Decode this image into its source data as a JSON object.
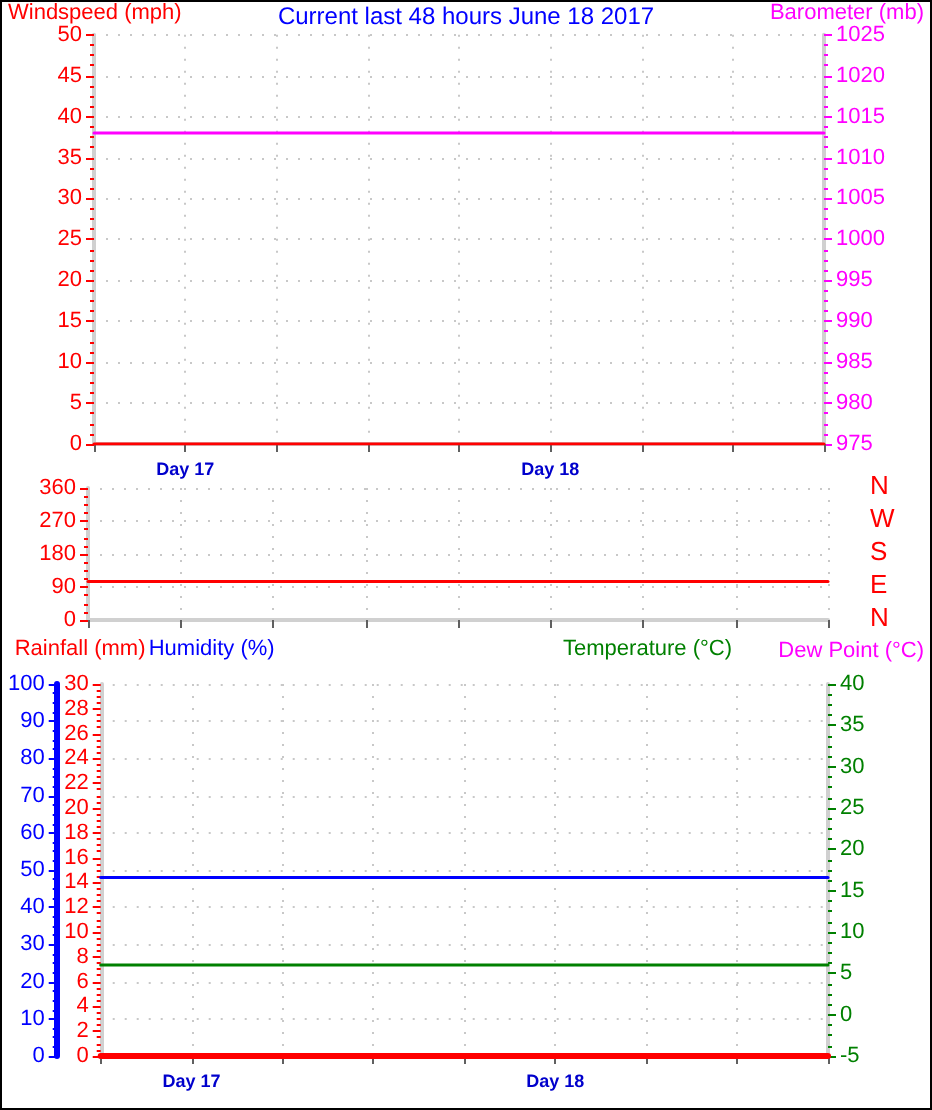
{
  "chart_data": [
    {
      "type": "line",
      "title": "Current last 48 hours June 18 2017",
      "ylabel": "Windspeed (mph)",
      "y2label": "Barometer (mb)",
      "marker": "none",
      "grid": true,
      "categories": [
        null,
        "Day 17",
        null,
        null,
        null,
        "Day 18",
        null,
        null,
        null
      ],
      "ylim": [
        0,
        50
      ],
      "yticks": [
        0,
        5,
        10,
        15,
        20,
        25,
        30,
        35,
        40,
        45,
        50
      ],
      "y2lim": [
        975,
        1025
      ],
      "y2ticks": [
        975,
        980,
        985,
        990,
        995,
        1000,
        1005,
        1010,
        1015,
        1020,
        1025
      ],
      "series": [
        {
          "color": "#ff00ff",
          "axis": "y2",
          "values": [
            1013,
            1013,
            1013,
            1013,
            1013,
            1013,
            1013,
            1013,
            1013
          ]
        },
        {
          "color": "#ff0000",
          "values": [
            0,
            0,
            0,
            0,
            0,
            0,
            0,
            0,
            0
          ]
        }
      ]
    },
    {
      "type": "line",
      "marker": "none",
      "grid": true,
      "tick_labels": "y",
      "annotations": [
        "N",
        "W",
        "S",
        "E",
        "N"
      ],
      "categories": [
        null,
        null,
        null,
        null,
        null,
        null,
        null,
        null,
        null
      ],
      "ylim": [
        0,
        360
      ],
      "yticks": [
        0,
        90,
        180,
        270,
        360
      ],
      "series": [
        {
          "color": "#ff0000",
          "values": [
            105,
            105,
            105,
            105,
            105,
            105,
            105,
            105,
            105
          ]
        }
      ]
    },
    {
      "type": "line",
      "ylabel": "Rainfall (mm)",
      "y2label": "Temperature (°C)",
      "y3label": "Humidity (%)",
      "annotations": [
        "Dew Point (°C)"
      ],
      "marker": "none",
      "grid": true,
      "categories": [
        null,
        "Day 17",
        null,
        null,
        null,
        "Day 18",
        null,
        null,
        null
      ],
      "ylim": [
        0,
        30
      ],
      "yticks": [
        0,
        2,
        4,
        6,
        8,
        10,
        12,
        14,
        16,
        18,
        20,
        22,
        24,
        26,
        28,
        30
      ],
      "y2lim": [
        -5,
        40
      ],
      "y2ticks": [
        -5,
        0,
        5,
        10,
        15,
        20,
        25,
        30,
        35,
        40
      ],
      "y3lim": [
        0,
        100
      ],
      "y3ticks": [
        0,
        10,
        20,
        30,
        40,
        50,
        60,
        70,
        80,
        90,
        100
      ],
      "series": [
        {
          "color": "#0000ff",
          "axis": "y3",
          "values": [
            48,
            48,
            48,
            48,
            48,
            48,
            48,
            48,
            48
          ]
        },
        {
          "color": "#008000",
          "axis": "y2",
          "values": [
            6,
            6,
            6,
            6,
            6,
            6,
            6,
            6,
            6
          ]
        },
        {
          "color": "#ff0000",
          "values": [
            0,
            0,
            0,
            0,
            0,
            0,
            0,
            0,
            0
          ]
        }
      ]
    }
  ]
}
